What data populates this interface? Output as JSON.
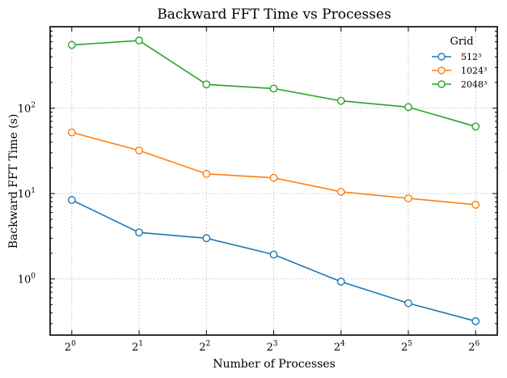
{
  "chart_data": {
    "type": "line",
    "title": "Backward FFT Time vs Processes",
    "xlabel": "Number of Processes",
    "ylabel": "Backward FFT Time (s)",
    "x_scale": "log2",
    "y_scale": "log10",
    "x": [
      1,
      2,
      4,
      8,
      16,
      32,
      64
    ],
    "x_tick_labels": [
      {
        "base": "2",
        "exp": "0"
      },
      {
        "base": "2",
        "exp": "1"
      },
      {
        "base": "2",
        "exp": "2"
      },
      {
        "base": "2",
        "exp": "3"
      },
      {
        "base": "2",
        "exp": "4"
      },
      {
        "base": "2",
        "exp": "5"
      },
      {
        "base": "2",
        "exp": "6"
      }
    ],
    "y_ticks": [
      1,
      10,
      100
    ],
    "y_tick_labels": [
      {
        "base": "10",
        "exp": "0"
      },
      {
        "base": "10",
        "exp": "1"
      },
      {
        "base": "10",
        "exp": "2"
      }
    ],
    "xlim": [
      0.8,
      80
    ],
    "ylim": [
      0.22,
      900
    ],
    "grid": true,
    "legend": {
      "title": "Grid",
      "placement": "top-right"
    },
    "series": [
      {
        "name": "512³",
        "color": "#1f77b4",
        "values": [
          8.4,
          3.5,
          3.0,
          1.93,
          0.93,
          0.52,
          0.32
        ]
      },
      {
        "name": "1024³",
        "color": "#ff7f0e",
        "values": [
          52,
          32,
          17,
          15.3,
          10.5,
          8.8,
          7.4
        ]
      },
      {
        "name": "2048³",
        "color": "#2ca02c",
        "values": [
          550,
          620,
          190,
          170,
          122,
          103,
          61
        ]
      }
    ]
  }
}
